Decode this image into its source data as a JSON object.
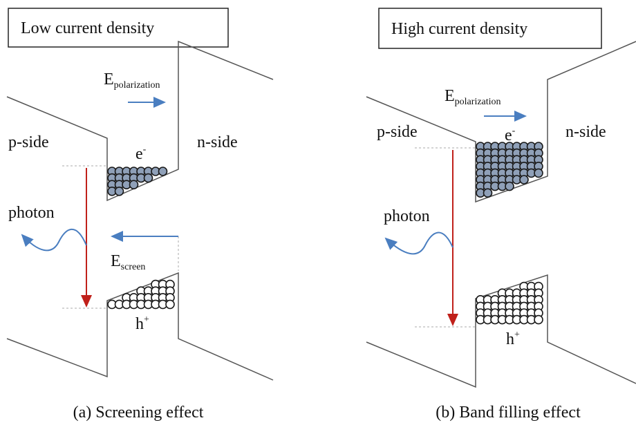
{
  "panels": [
    {
      "title": "Low current density",
      "e_field": {
        "base": "E",
        "sub": "polarization"
      },
      "p_side": "p-side",
      "n_side": "n-side",
      "electron": {
        "base": "e",
        "sup": "-"
      },
      "photon": "photon",
      "screen_field": {
        "base": "E",
        "sub": "screen"
      },
      "hole": {
        "base": "h",
        "sup": "+"
      },
      "caption": "(a) Screening effect"
    },
    {
      "title": "High current density",
      "e_field": {
        "base": "E",
        "sub": "polarization"
      },
      "p_side": "p-side",
      "n_side": "n-side",
      "electron": {
        "base": "e",
        "sup": "-"
      },
      "photon": "photon",
      "hole": {
        "base": "h",
        "sup": "+"
      },
      "caption": "(b) Band filling effect"
    }
  ]
}
